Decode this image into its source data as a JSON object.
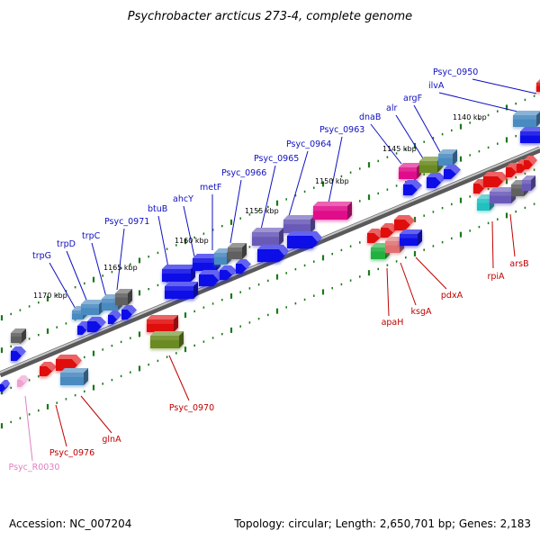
{
  "title": "Psychrobacter arcticus 273-4, complete genome",
  "footer": {
    "accession": "Accession: NC_007204",
    "summary": "Topology: circular; Length: 2,650,701 bp; Genes: 2,183"
  },
  "colors": {
    "blue": "#1010e8",
    "steel": "#4a8ac0",
    "red": "#e01010",
    "magenta": "#e0108a",
    "olive": "#6a8a20",
    "purple": "#6a5ab8",
    "green": "#20b040",
    "salmon": "#e07070",
    "gray": "#606060",
    "cyan": "#20c0c0",
    "pink": "#f0a0d0",
    "label_blue": "#1010c0",
    "label_red": "#c00000",
    "label_pink": "#e080c0",
    "backbone": "#808080",
    "tick": "#1a7a1a"
  },
  "scale_ticks": [
    "1170 kbp",
    "1165 kbp",
    "1160 kbp",
    "1155 kbp",
    "1150 kbp",
    "1145 kbp",
    "1140 kbp"
  ],
  "top_labels": [
    "trpG",
    "trpD",
    "trpC",
    "Psyc_0971",
    "btuB",
    "ahcY",
    "metF",
    "Psyc_0966",
    "Psyc_0965",
    "Psyc_0964",
    "Psyc_0963",
    "dnaB",
    "alr",
    "argF",
    "ilvA",
    "Psyc_0950"
  ],
  "bottom_labels": [
    "Psyc_R0030",
    "Psyc_0976",
    "glnA",
    "Psyc_0970",
    "apaH",
    "ksgA",
    "pdxA",
    "rpiA",
    "arsB"
  ]
}
